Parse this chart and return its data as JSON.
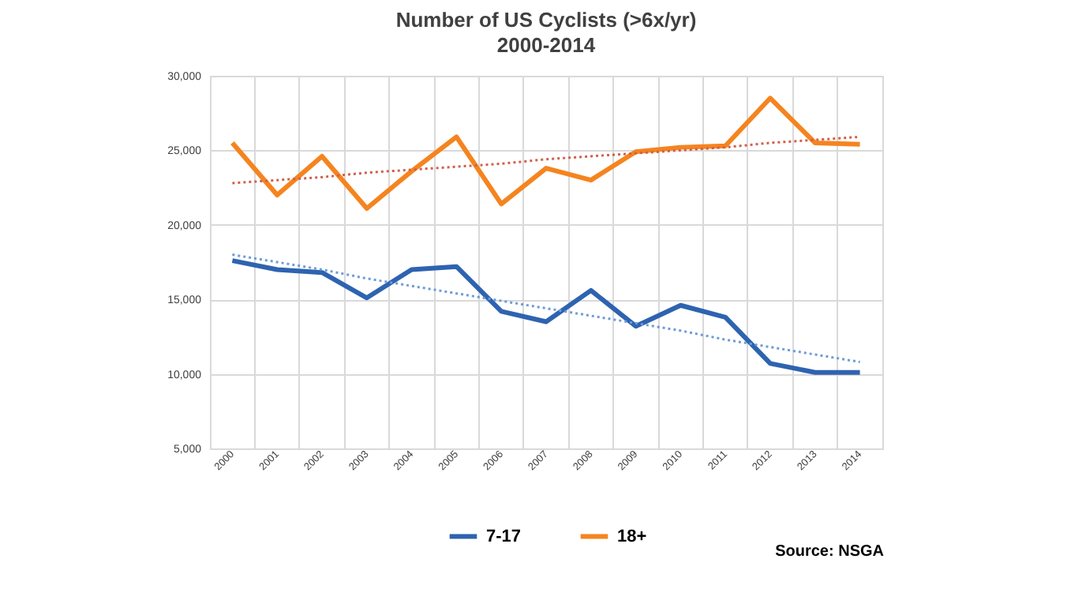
{
  "chart_data": {
    "type": "line",
    "title": "Number of US Cyclists (>6x/yr)",
    "subtitle": "2000-2014",
    "categories": [
      "2000",
      "2001",
      "2002",
      "2003",
      "2004",
      "2005",
      "2006",
      "2007",
      "2008",
      "2009",
      "2010",
      "2011",
      "2012",
      "2013",
      "2014"
    ],
    "series": [
      {
        "name": "7-17",
        "color": "#2e63b0",
        "line_style": "solid",
        "values": [
          17600,
          17000,
          16800,
          15100,
          17000,
          17200,
          14200,
          13500,
          15600,
          13200,
          14600,
          13800,
          10700,
          10100,
          10100
        ]
      },
      {
        "name": "18+",
        "color": "#f5841f",
        "line_style": "solid",
        "values": [
          25500,
          22000,
          24600,
          21100,
          23600,
          25900,
          21400,
          23800,
          23000,
          24900,
          25200,
          25300,
          28500,
          25500,
          25400
        ]
      },
      {
        "type": "line",
        "color": "#6e9bd8",
        "line_style": "dotted",
        "values": [
          18000,
          17500,
          17000,
          16400,
          15900,
          15400,
          14900,
          14400,
          13900,
          13400,
          12900,
          12300,
          11800,
          11300,
          10800
        ]
      },
      {
        "type": "line",
        "color": "#d0604a",
        "line_style": "dotted",
        "values": [
          22800,
          23000,
          23200,
          23500,
          23700,
          23900,
          24100,
          24400,
          24600,
          24800,
          25000,
          25200,
          25500,
          25700,
          25900
        ]
      }
    ],
    "ylim": [
      5000,
      30000
    ],
    "yticks": [
      {
        "value": 5000,
        "label": "5,000"
      },
      {
        "value": 10000,
        "label": "10,000"
      },
      {
        "value": 15000,
        "label": "15,000"
      },
      {
        "value": 20000,
        "label": "20,000"
      },
      {
        "value": 25000,
        "label": "25,000"
      },
      {
        "value": 30000,
        "label": "30,000"
      }
    ],
    "grid": true,
    "legend": "bottom",
    "annotations": [
      "Source: NSGA"
    ]
  }
}
